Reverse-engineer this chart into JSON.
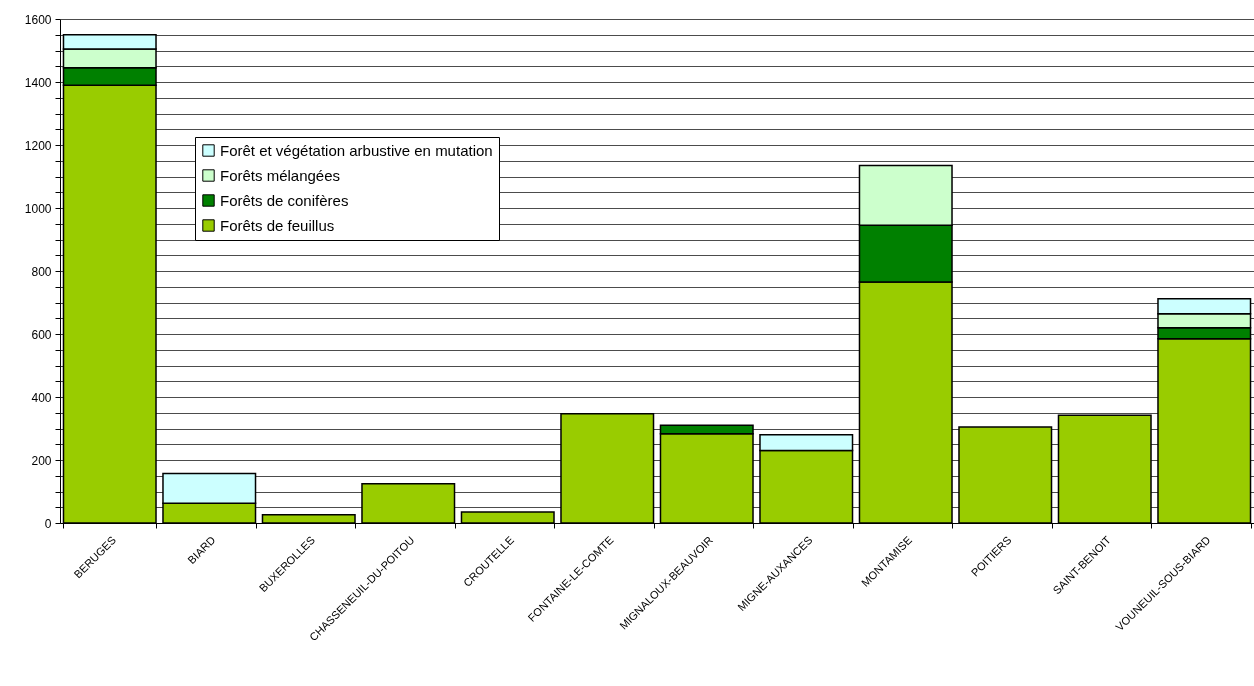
{
  "chart_data": {
    "type": "bar",
    "stacked": true,
    "categories": [
      "BERUGES",
      "BIARD",
      "BUXEROLLES",
      "CHASSENEUIL-DU-POITOU",
      "CROUTELLE",
      "FONTAINE-LE-COMTE",
      "MIGNALOUX-BEAUVOIR",
      "MIGNE-AUXANCES",
      "MONTAMISE",
      "POITIERS",
      "SAINT-BENOIT",
      "VOUNEUIL-SOUS-BIARD"
    ],
    "series": [
      {
        "name": "Forêts de feuillus",
        "color": "#99cc00",
        "values": [
          1390,
          63,
          26,
          125,
          35,
          347,
          283,
          230,
          765,
          305,
          342,
          585
        ]
      },
      {
        "name": "Forêts de conifères",
        "color": "#008000",
        "values": [
          55,
          null,
          null,
          null,
          null,
          null,
          27,
          null,
          180,
          null,
          null,
          35
        ]
      },
      {
        "name": "Forêts mélangées",
        "color": "#ccffcc",
        "values": [
          60,
          null,
          null,
          null,
          null,
          null,
          null,
          null,
          190,
          null,
          null,
          44
        ]
      },
      {
        "name": "Forêt et végétation arbustive en mutation",
        "color": "#ccffff",
        "values": [
          45,
          94,
          null,
          null,
          null,
          null,
          null,
          50,
          null,
          null,
          null,
          48
        ]
      }
    ],
    "ylim": [
      0,
      1600
    ],
    "yticks": [
      0,
      {
        "value": 50,
        "label": null
      },
      {
        "value": 100,
        "label": null
      },
      {
        "value": 150,
        "label": null
      },
      200,
      {
        "value": 250,
        "label": null
      },
      {
        "value": 300,
        "label": null
      },
      {
        "value": 350,
        "label": null
      },
      400,
      {
        "value": 450,
        "label": null
      },
      {
        "value": 500,
        "label": null
      },
      {
        "value": 550,
        "label": null
      },
      600,
      {
        "value": 650,
        "label": null
      },
      {
        "value": 700,
        "label": null
      },
      {
        "value": 750,
        "label": null
      },
      800,
      {
        "value": 850,
        "label": null
      },
      {
        "value": 900,
        "label": null
      },
      {
        "value": 950,
        "label": null
      },
      1000,
      {
        "value": 1050,
        "label": null
      },
      {
        "value": 1100,
        "label": null
      },
      {
        "value": 1150,
        "label": null
      },
      1200,
      {
        "value": 1250,
        "label": null
      },
      {
        "value": 1300,
        "label": null
      },
      {
        "value": 1350,
        "label": null
      },
      1400,
      {
        "value": 1450,
        "label": null
      },
      {
        "value": 1500,
        "label": null
      },
      {
        "value": 1550,
        "label": null
      },
      1600
    ],
    "grid": "y",
    "legend": "top left"
  }
}
